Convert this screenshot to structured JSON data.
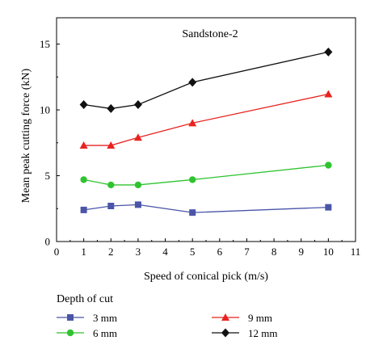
{
  "chart_data": {
    "type": "line",
    "title": "Sandstone-2",
    "xlabel": "Speed of conical pick (m/s)",
    "ylabel": "Mean peak cutting force (kN)",
    "xlim": [
      0,
      11
    ],
    "ylim": [
      0,
      17
    ],
    "xticks": [
      0,
      1,
      2,
      3,
      4,
      5,
      6,
      7,
      8,
      9,
      10,
      11
    ],
    "yticks": [
      0,
      5,
      10,
      15
    ],
    "legend_title": "Depth of cut",
    "legend_position": "below",
    "grid": false,
    "x": [
      1,
      2,
      3,
      5,
      10
    ],
    "series": [
      {
        "name": "3 mm",
        "color": "#4a55a8",
        "marker": "square",
        "values": [
          2.4,
          2.7,
          2.8,
          2.2,
          2.6
        ]
      },
      {
        "name": "6 mm",
        "color": "#2fc42f",
        "marker": "circle",
        "values": [
          4.7,
          4.3,
          4.3,
          4.7,
          5.8
        ]
      },
      {
        "name": "9 mm",
        "color": "#e8231f",
        "marker": "triangle",
        "values": [
          7.3,
          7.3,
          7.9,
          9.0,
          11.2
        ]
      },
      {
        "name": "12 mm",
        "color": "#111111",
        "marker": "diamond",
        "values": [
          10.4,
          10.1,
          10.4,
          12.1,
          14.4
        ]
      }
    ]
  }
}
